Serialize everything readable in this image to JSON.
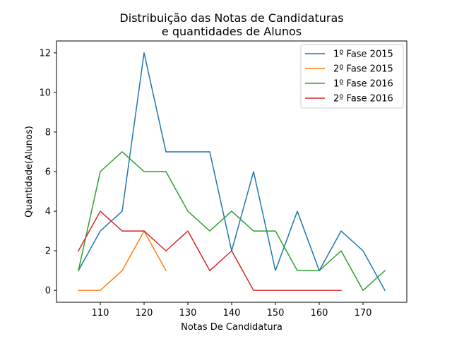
{
  "chart_data": {
    "type": "line",
    "title": [
      "Distribuição das Notas de Candidaturas",
      "e quantidades de Alunos"
    ],
    "xlabel": "Notas De Candidatura",
    "ylabel": "Quantidade(Alunos)",
    "xlim": [
      100,
      180
    ],
    "ylim": [
      -0.6,
      12.6
    ],
    "xticks": [
      110,
      120,
      130,
      140,
      150,
      160,
      170
    ],
    "yticks": [
      0,
      2,
      4,
      6,
      8,
      10,
      12
    ],
    "grid": false,
    "legend_position": "top-right",
    "series": [
      {
        "name": "1º Fase 2015",
        "color": "#1f77b4",
        "x": [
          105,
          110,
          115,
          120,
          125,
          130,
          135,
          140,
          145,
          150,
          155,
          160,
          165,
          170,
          175
        ],
        "y": [
          1,
          3,
          4,
          12,
          7,
          7,
          7,
          2,
          6,
          1,
          4,
          1,
          3,
          2,
          0
        ]
      },
      {
        "name": "2º Fase 2015",
        "color": "#ff7f0e",
        "x": [
          105,
          110,
          115,
          120,
          125
        ],
        "y": [
          0,
          0,
          1,
          3,
          1
        ]
      },
      {
        "name": "1º Fase 2016",
        "color": "#2ca02c",
        "x": [
          105,
          110,
          115,
          120,
          125,
          130,
          135,
          140,
          145,
          150,
          155,
          160,
          165,
          170,
          175
        ],
        "y": [
          1,
          6,
          7,
          6,
          6,
          4,
          3,
          4,
          3,
          3,
          1,
          1,
          2,
          0,
          1
        ]
      },
      {
        "name": "2º Fase 2016",
        "color": "#d62728",
        "x": [
          105,
          110,
          115,
          120,
          125,
          130,
          135,
          140,
          145,
          150,
          155,
          160,
          165
        ],
        "y": [
          2,
          4,
          3,
          3,
          2,
          3,
          1,
          2,
          0,
          0,
          0,
          0,
          0
        ]
      }
    ]
  }
}
